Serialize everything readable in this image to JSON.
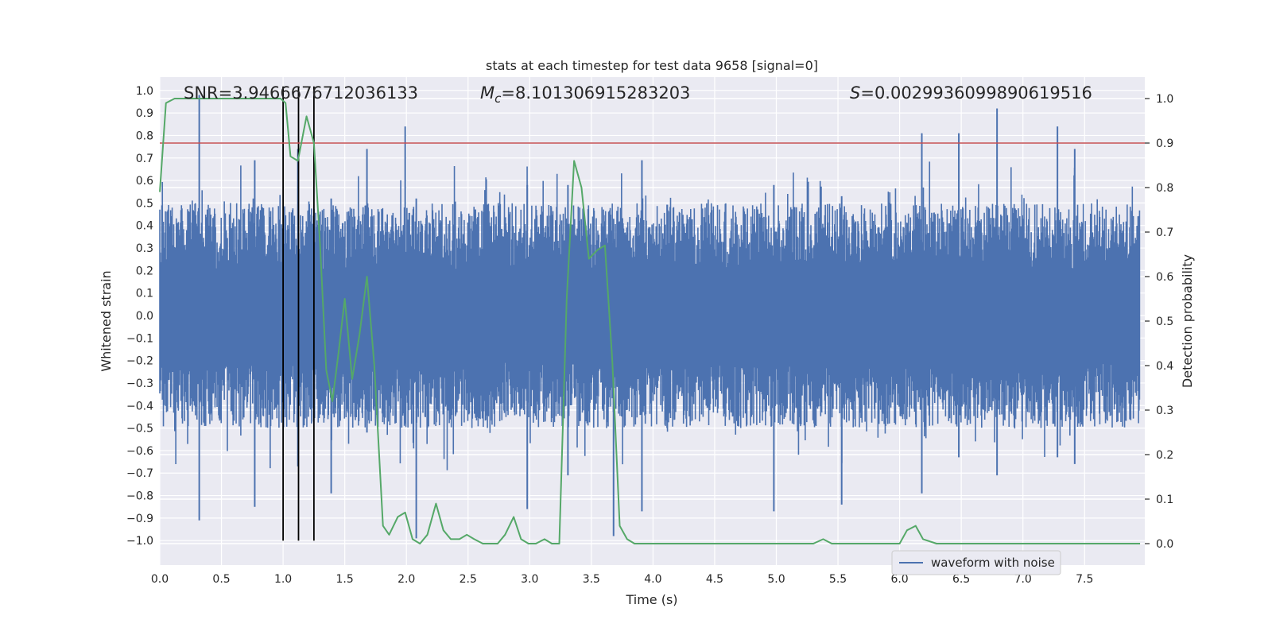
{
  "chart_data": {
    "type": "line",
    "title": "stats at each timestep for test data 9658 [signal=0]",
    "xlabel": "Time (s)",
    "ylabel_left": "Whitened strain",
    "ylabel_right": "Detection probability",
    "xlim": [
      0.0,
      8.0
    ],
    "ylim_left": [
      -1.1,
      1.08
    ],
    "ylim_right": [
      -0.05,
      1.05
    ],
    "x_ticks": [
      "0.0",
      "0.5",
      "1.0",
      "1.5",
      "2.0",
      "2.5",
      "3.0",
      "3.5",
      "4.0",
      "4.5",
      "5.0",
      "5.5",
      "6.0",
      "6.5",
      "7.0",
      "7.5"
    ],
    "y_left_ticks": [
      "1.0",
      "0.9",
      "0.8",
      "0.7",
      "0.6",
      "0.5",
      "0.4",
      "0.3",
      "0.2",
      "0.1",
      "0.0",
      "-0.1",
      "-0.2",
      "-0.3",
      "-0.4",
      "-0.5",
      "-0.6",
      "-0.7",
      "-0.8",
      "-0.9",
      "-1.0"
    ],
    "y_right_ticks": [
      "1.0",
      "0.9",
      "0.8",
      "0.7",
      "0.6",
      "0.5",
      "0.4",
      "0.3",
      "0.2",
      "0.1",
      "0.0"
    ],
    "grid": true,
    "legend": {
      "position": "lower-right",
      "entries": [
        "waveform with noise"
      ]
    },
    "annotations": {
      "snr": "SNR=3.9466676712036133",
      "mc_symbol": "M",
      "mc_sub": "c",
      "mc_value": "=8.101306915283203",
      "s_symbol": "S",
      "s_value": "=0.002993609989061951​6"
    },
    "threshold": {
      "axis": "right",
      "value": 0.9,
      "color": "#c44e52"
    },
    "vertical_markers": {
      "x": [
        1.0,
        1.125,
        1.25
      ],
      "color": "#000000"
    },
    "series": [
      {
        "name": "waveform with noise",
        "axis": "left",
        "color": "#4c72b0",
        "envelope_note_spikes": [
          [
            0.32,
            0.98,
            -0.91
          ],
          [
            0.77,
            0.69,
            -0.85
          ],
          [
            1.12,
            0.74,
            -0.67
          ],
          [
            1.39,
            0.52,
            -0.79
          ],
          [
            1.68,
            0.74,
            -0.52
          ],
          [
            1.99,
            0.84,
            -0.48
          ],
          [
            2.08,
            0.52,
            -0.99
          ],
          [
            2.98,
            0.58,
            -0.86
          ],
          [
            3.31,
            0.58,
            -0.71
          ],
          [
            3.68,
            0.43,
            -0.98
          ],
          [
            3.91,
            0.69,
            -0.87
          ],
          [
            4.98,
            0.58,
            -0.87
          ],
          [
            5.53,
            0.53,
            -0.84
          ],
          [
            6.18,
            0.81,
            -0.79
          ],
          [
            6.48,
            0.81,
            -0.63
          ],
          [
            6.79,
            0.92,
            -0.71
          ],
          [
            7.28,
            0.84,
            -0.63
          ],
          [
            7.42,
            0.74,
            -0.66
          ]
        ]
      },
      {
        "name": "",
        "axis": "right",
        "color": "#55a868",
        "x": [
          0.0,
          0.05,
          0.12,
          0.2,
          0.3,
          0.4,
          0.5,
          0.6,
          0.7,
          0.8,
          0.9,
          0.98,
          1.02,
          1.06,
          1.12,
          1.19,
          1.25,
          1.3,
          1.35,
          1.4,
          1.45,
          1.5,
          1.56,
          1.62,
          1.68,
          1.74,
          1.81,
          1.86,
          1.93,
          1.99,
          2.05,
          2.11,
          2.17,
          2.24,
          2.3,
          2.36,
          2.43,
          2.49,
          2.55,
          2.62,
          2.68,
          2.74,
          2.8,
          2.87,
          2.93,
          2.99,
          3.05,
          3.12,
          3.18,
          3.24,
          3.3,
          3.36,
          3.42,
          3.48,
          3.55,
          3.61,
          3.67,
          3.73,
          3.79,
          3.85,
          3.92,
          3.99,
          4.1,
          4.25,
          4.4,
          4.6,
          4.8,
          5.0,
          5.2,
          5.3,
          5.38,
          5.45,
          5.55,
          5.7,
          5.9,
          6.0,
          6.06,
          6.13,
          6.19,
          6.3,
          6.5,
          6.7,
          6.8,
          7.0,
          7.2,
          7.5,
          7.8,
          7.95
        ],
        "y": [
          0.79,
          0.99,
          1.0,
          1.0,
          1.0,
          1.0,
          1.0,
          1.0,
          1.0,
          1.0,
          1.0,
          1.0,
          0.99,
          0.87,
          0.86,
          0.96,
          0.9,
          0.67,
          0.39,
          0.32,
          0.43,
          0.55,
          0.37,
          0.47,
          0.6,
          0.4,
          0.04,
          0.02,
          0.06,
          0.07,
          0.01,
          0.0,
          0.02,
          0.09,
          0.03,
          0.01,
          0.01,
          0.02,
          0.01,
          0.0,
          0.0,
          0.0,
          0.02,
          0.06,
          0.01,
          0.0,
          0.0,
          0.01,
          0.0,
          0.0,
          0.55,
          0.86,
          0.8,
          0.64,
          0.66,
          0.67,
          0.41,
          0.04,
          0.01,
          0.0,
          0.0,
          0.0,
          0.0,
          0.0,
          0.0,
          0.0,
          0.0,
          0.0,
          0.0,
          0.0,
          0.01,
          0.0,
          0.0,
          0.0,
          0.0,
          0.0,
          0.03,
          0.04,
          0.01,
          0.0,
          0.0,
          0.0,
          0.0,
          0.0,
          0.0,
          0.0,
          0.0,
          0.0
        ]
      }
    ]
  }
}
